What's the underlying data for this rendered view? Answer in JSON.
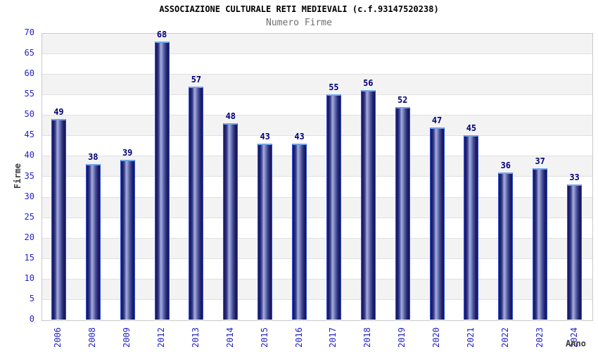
{
  "chart_data": {
    "type": "bar",
    "title": "ASSOCIAZIONE CULTURALE RETI MEDIEVALI (c.f.93147520238)",
    "subtitle": "Numero Firme",
    "xlabel": "Anno",
    "ylabel": "Firme",
    "categories": [
      "2006",
      "2008",
      "2009",
      "2012",
      "2013",
      "2014",
      "2015",
      "2016",
      "2017",
      "2018",
      "2019",
      "2020",
      "2021",
      "2022",
      "2023",
      "2024"
    ],
    "values": [
      49,
      38,
      39,
      68,
      57,
      48,
      43,
      43,
      55,
      56,
      52,
      47,
      45,
      36,
      37,
      33
    ],
    "ylim": [
      0,
      70
    ],
    "ytick_step": 5,
    "yticks": [
      0,
      5,
      10,
      15,
      20,
      25,
      30,
      35,
      40,
      45,
      50,
      55,
      60,
      65,
      70
    ],
    "grid": "horizontal-bands-alternating",
    "legend": "none",
    "colors": {
      "bar_dark": "#16165e",
      "bar_highlight": "#a6aedd",
      "bar_border": "#2b50d4",
      "bar_top_cap": "#74a6e8",
      "tick_label": "#2222cc",
      "value_label": "#000078",
      "axis_title": "#3c3c3c",
      "subtitle_text": "#6e6e6e",
      "band_gray": "#f3f3f3",
      "band_white": "#ffffff",
      "grid_line": "#e0e0e0",
      "plot_border": "#c9c9c9"
    }
  }
}
